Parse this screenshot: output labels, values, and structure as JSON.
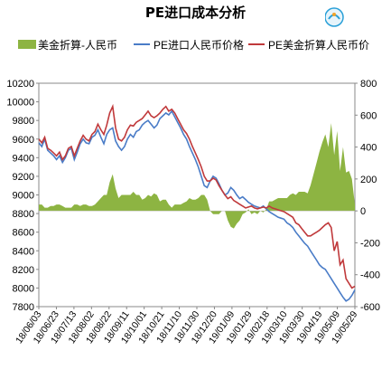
{
  "chart_data": {
    "type": "line",
    "title": "PE进口成本分析",
    "legend": [
      "美金折算-人民币",
      "PE进口人民币价格",
      "PE美金折算人民币价"
    ],
    "legend_position": "top",
    "colors": {
      "area": "#8db442",
      "blue": "#4a7cc7",
      "red": "#c0393b"
    },
    "y_left": {
      "min": 7800,
      "max": 10200,
      "step": 200
    },
    "y_right": {
      "min": -600,
      "max": 800,
      "step": 200
    },
    "x_tick_labels": [
      "18/06/03",
      "18/06/23",
      "18/07/13",
      "18/08/02",
      "18/08/22",
      "18/09/11",
      "18/10/01",
      "18/10/21",
      "18/11/10",
      "18/11/30",
      "18/12/20",
      "19/01/09",
      "19/01/29",
      "19/02/18",
      "19/03/10",
      "19/03/30",
      "19/04/19",
      "19/05/09",
      "19/05/29"
    ],
    "series": [
      {
        "name": "PE进口人民币价格",
        "axis": "left",
        "values": [
          9560,
          9520,
          9600,
          9480,
          9450,
          9420,
          9380,
          9420,
          9350,
          9400,
          9480,
          9500,
          9380,
          9460,
          9550,
          9600,
          9560,
          9550,
          9620,
          9640,
          9700,
          9620,
          9550,
          9650,
          9700,
          9720,
          9580,
          9520,
          9480,
          9520,
          9600,
          9650,
          9620,
          9680,
          9700,
          9750,
          9780,
          9800,
          9760,
          9720,
          9750,
          9820,
          9850,
          9880,
          9860,
          9900,
          9840,
          9780,
          9720,
          9650,
          9600,
          9520,
          9450,
          9380,
          9300,
          9200,
          9100,
          9080,
          9150,
          9200,
          9180,
          9120,
          9050,
          9000,
          9020,
          9080,
          9050,
          9000,
          8960,
          8980,
          8950,
          8920,
          8900,
          8880,
          8870,
          8860,
          8880,
          8850,
          8820,
          8800,
          8780,
          8760,
          8750,
          8740,
          8700,
          8680,
          8650,
          8600,
          8560,
          8520,
          8480,
          8450,
          8400,
          8350,
          8300,
          8250,
          8220,
          8200,
          8150,
          8100,
          8050,
          8000,
          7950,
          7900,
          7860,
          7880,
          7920,
          7980
        ]
      },
      {
        "name": "PE美金折算人民币价",
        "axis": "left",
        "values": [
          9600,
          9560,
          9620,
          9500,
          9480,
          9450,
          9420,
          9460,
          9380,
          9420,
          9500,
          9520,
          9420,
          9500,
          9580,
          9640,
          9600,
          9580,
          9650,
          9680,
          9760,
          9700,
          9650,
          9750,
          9880,
          9950,
          9720,
          9600,
          9580,
          9620,
          9700,
          9750,
          9740,
          9780,
          9800,
          9820,
          9860,
          9900,
          9850,
          9830,
          9850,
          9880,
          9920,
          9950,
          9900,
          9920,
          9880,
          9820,
          9760,
          9700,
          9660,
          9600,
          9520,
          9450,
          9380,
          9300,
          9200,
          9150,
          9150,
          9180,
          9160,
          9100,
          9050,
          9000,
          8960,
          8980,
          8940,
          8920,
          8900,
          8880,
          8860,
          8870,
          8880,
          8860,
          8850,
          8860,
          8870,
          8860,
          8880,
          8860,
          8850,
          8840,
          8830,
          8820,
          8800,
          8780,
          8760,
          8700,
          8680,
          8640,
          8600,
          8560,
          8560,
          8580,
          8600,
          8620,
          8650,
          8680,
          8700,
          8650,
          8400,
          8500,
          8250,
          8300,
          8100,
          8050,
          8000,
          8020
        ]
      },
      {
        "name": "美金折算-人民币",
        "axis": "right",
        "values": [
          40,
          40,
          20,
          20,
          30,
          30,
          40,
          40,
          30,
          20,
          20,
          20,
          40,
          40,
          30,
          40,
          40,
          30,
          30,
          40,
          60,
          80,
          100,
          100,
          180,
          230,
          140,
          80,
          100,
          100,
          100,
          100,
          120,
          100,
          100,
          70,
          80,
          100,
          90,
          110,
          100,
          60,
          70,
          70,
          40,
          20,
          40,
          40,
          40,
          50,
          60,
          80,
          70,
          70,
          80,
          100,
          100,
          70,
          0,
          -20,
          -20,
          -20,
          0,
          0,
          -60,
          -100,
          -110,
          -80,
          -60,
          -20,
          -10,
          10,
          -20,
          -10,
          -20,
          0,
          -10,
          10,
          60,
          60,
          70,
          80,
          80,
          80,
          80,
          100,
          110,
          100,
          120,
          120,
          120,
          110,
          160,
          230,
          300,
          370,
          430,
          480,
          400,
          550,
          350,
          500,
          250,
          400,
          240,
          250,
          200,
          40
        ]
      }
    ]
  }
}
